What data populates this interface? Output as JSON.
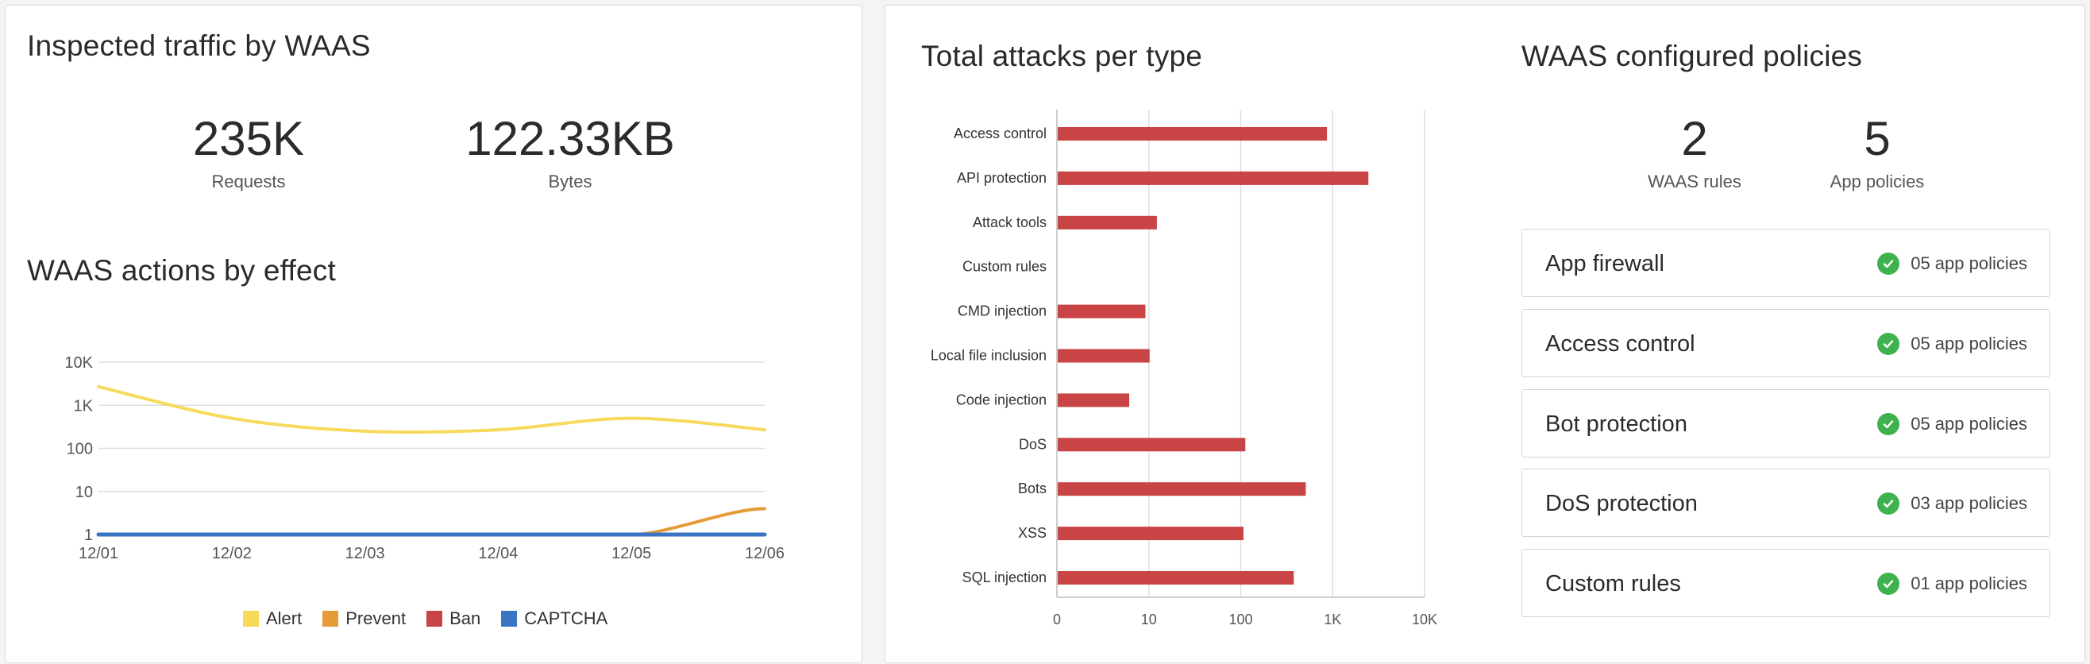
{
  "inspected": {
    "title": "Inspected traffic by WAAS",
    "requests_value": "235K",
    "requests_label": "Requests",
    "bytes_value": "122.33KB",
    "bytes_label": "Bytes"
  },
  "actions": {
    "title": "WAAS actions by effect",
    "legend": [
      "Alert",
      "Prevent",
      "Ban",
      "CAPTCHA"
    ],
    "colors": {
      "Alert": "#f7d95c",
      "Prevent": "#e59b38",
      "Ban": "#c94444",
      "CAPTCHA": "#3a74c5"
    }
  },
  "attacks": {
    "title": "Total attacks per type"
  },
  "policies": {
    "title": "WAAS configured policies",
    "rules_value": "2",
    "rules_label": "WAAS rules",
    "app_value": "5",
    "app_label": "App policies",
    "items": [
      {
        "name": "App firewall",
        "status": "05 app policies"
      },
      {
        "name": "Access control",
        "status": "05 app policies"
      },
      {
        "name": "Bot protection",
        "status": "05 app policies"
      },
      {
        "name": "DoS protection",
        "status": "03 app policies"
      },
      {
        "name": "Custom rules",
        "status": "01 app policies"
      }
    ]
  },
  "chart_data": [
    {
      "type": "line",
      "title": "WAAS actions by effect",
      "x": [
        "12/01",
        "12/02",
        "12/03",
        "12/04",
        "12/05",
        "12/06"
      ],
      "y_scale": "log",
      "ylim": [
        1,
        10000
      ],
      "y_ticks": [
        "1",
        "10",
        "100",
        "1K",
        "10K"
      ],
      "grid": true,
      "legend_position": "bottom",
      "series": [
        {
          "name": "Alert",
          "color": "#f7d95c",
          "values": [
            2700,
            500,
            250,
            270,
            500,
            270
          ]
        },
        {
          "name": "Prevent",
          "color": "#e59b38",
          "values": [
            1,
            1,
            1,
            1,
            1,
            4
          ]
        },
        {
          "name": "Ban",
          "color": "#c94444",
          "values": [
            1,
            1,
            1,
            1,
            1,
            1
          ]
        },
        {
          "name": "CAPTCHA",
          "color": "#3a74c5",
          "values": [
            1,
            1,
            1,
            1,
            1,
            1
          ]
        }
      ]
    },
    {
      "type": "bar",
      "orientation": "horizontal",
      "title": "Total attacks per type",
      "x_scale": "log",
      "xlim": [
        1,
        10000
      ],
      "x_ticks": [
        "0",
        "10",
        "100",
        "1K",
        "10K"
      ],
      "grid": true,
      "color": "#c94444",
      "categories": [
        "Access control",
        "API protection",
        "Attack tools",
        "Custom rules",
        "CMD injection",
        "Local file inclusion",
        "Code injection",
        "DoS",
        "Bots",
        "XSS",
        "SQL injection"
      ],
      "values": [
        850,
        2400,
        12,
        0,
        9,
        10,
        6,
        110,
        500,
        105,
        370
      ]
    }
  ]
}
